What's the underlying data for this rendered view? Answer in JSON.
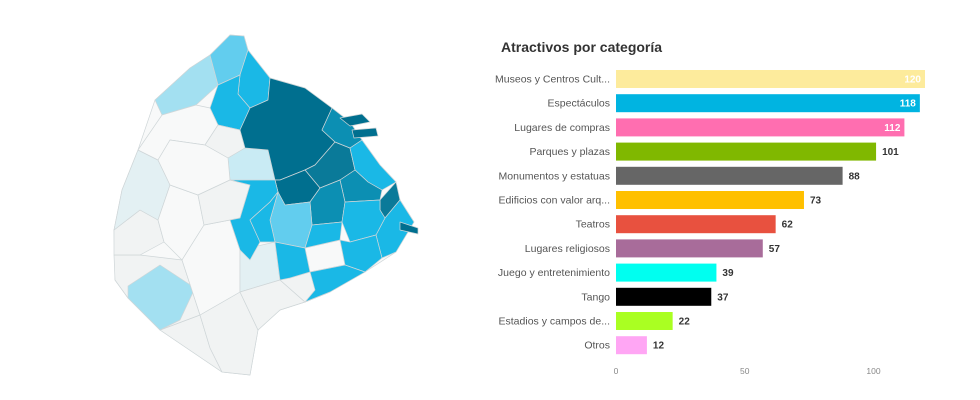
{
  "map": {
    "palette": {
      "dark": "#006f8f",
      "dark2": "#0a7a99",
      "mid": "#0c8fb3",
      "bright": "#1ab8e6",
      "light": "#62cdee",
      "pale": "#a3e0f1",
      "paler": "#c9ebf4",
      "faint": "#e3f0f3",
      "gray": "#f1f3f3",
      "white": "#f8f9f9",
      "stroke": "#cfd6d8"
    }
  },
  "chart_data": {
    "type": "bar",
    "orientation": "horizontal",
    "title": "Atractivos por categoría",
    "categories": [
      "Museos y Centros Cult...",
      "Espectáculos",
      "Lugares de compras",
      "Parques y plazas",
      "Monumentos y estatuas",
      "Edificios con valor arq...",
      "Teatros",
      "Lugares religiosos",
      "Juego y entretenimiento",
      "Tango",
      "Estadios y campos de...",
      "Otros"
    ],
    "values": [
      120,
      118,
      112,
      101,
      88,
      73,
      62,
      57,
      39,
      37,
      22,
      12
    ],
    "colors": [
      "#fdeb9c",
      "#00b4e1",
      "#ff6eb0",
      "#80b800",
      "#666666",
      "#ffc000",
      "#e8513f",
      "#a86c9a",
      "#00fff0",
      "#000000",
      "#aaff22",
      "#ffa6f4"
    ],
    "value_label_colors": [
      "#ffffff",
      "#ffffff",
      "#ffffff",
      "#333333",
      "#333333",
      "#333333",
      "#333333",
      "#333333",
      "#333333",
      "#333333",
      "#333333",
      "#333333"
    ],
    "value_label_inside": [
      true,
      true,
      true,
      false,
      false,
      false,
      false,
      false,
      false,
      false,
      false,
      false
    ],
    "xlim": [
      0,
      120
    ],
    "xticks": [
      0,
      50,
      100
    ],
    "grid": false,
    "legend": "none"
  }
}
